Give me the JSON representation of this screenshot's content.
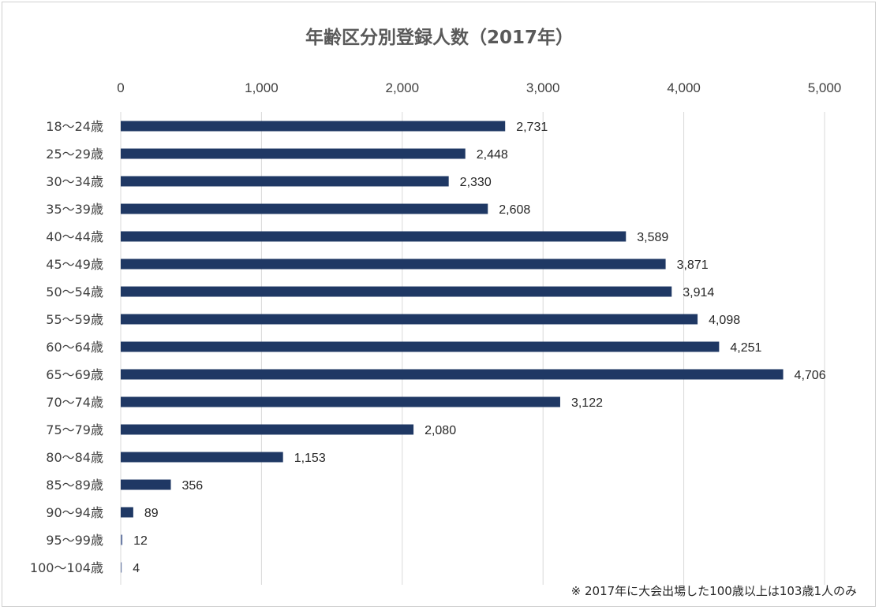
{
  "chart_data": {
    "type": "bar",
    "orientation": "horizontal",
    "title": "年齢区分別登録人数（2017年）",
    "categories": [
      "18～24歳",
      "25～29歳",
      "30～34歳",
      "35～39歳",
      "40～44歳",
      "45～49歳",
      "50～54歳",
      "55～59歳",
      "60～64歳",
      "65～69歳",
      "70～74歳",
      "75～79歳",
      "80～84歳",
      "85～89歳",
      "90～94歳",
      "95～99歳",
      "100～104歳"
    ],
    "values": [
      2731,
      2448,
      2330,
      2608,
      3589,
      3871,
      3914,
      4098,
      4251,
      4706,
      3122,
      2080,
      1153,
      356,
      89,
      12,
      4
    ],
    "value_labels": [
      "2,731",
      "2,448",
      "2,330",
      "2,608",
      "3,589",
      "3,871",
      "3,914",
      "4,098",
      "4,251",
      "4,706",
      "3,122",
      "2,080",
      "1,153",
      "356",
      "89",
      "12",
      "4"
    ],
    "xlim": [
      0,
      5000
    ],
    "x_ticks": [
      0,
      1000,
      2000,
      3000,
      4000,
      5000
    ],
    "x_tick_labels": [
      "0",
      "1,000",
      "2,000",
      "3,000",
      "4,000",
      "5,000"
    ],
    "x_axis_position": "top",
    "grid": true,
    "legend": "none",
    "bar_color": "#1f3864",
    "footnote": "※ 2017年に大会出場した100歳以上は103歳1人のみ"
  }
}
